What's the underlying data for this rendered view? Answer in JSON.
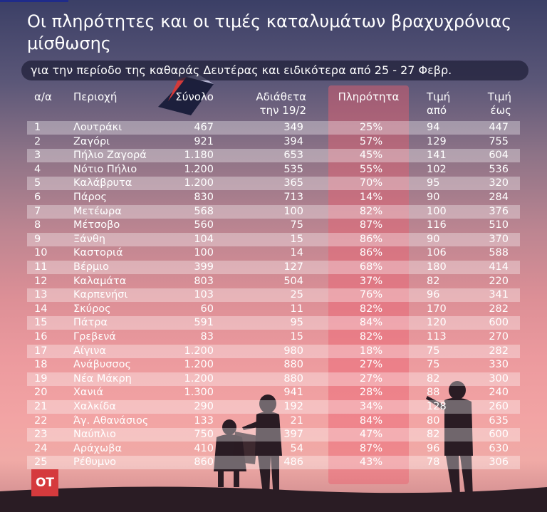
{
  "title": "Οι πληρότητες και οι τιμές καταλυμάτων βραχυχρόνιας μίσθωσης",
  "subtitle": "για την περίοδο της καθαράς Δευτέρας και ειδικότερα από 25 - 27 Φεβρ.",
  "logo": "ΟΤ",
  "colors": {
    "highlight": "#eb5f6e",
    "subtitle_bar": "#1e1e37",
    "logo": "#d53a3d",
    "text": "#ffffff"
  },
  "chart_data": {
    "type": "table",
    "columns": [
      {
        "key": "no",
        "label": [
          "α/α"
        ]
      },
      {
        "key": "region",
        "label": [
          "Περιοχή"
        ]
      },
      {
        "key": "total",
        "label": [
          "Σύνολο"
        ]
      },
      {
        "key": "unavailable",
        "label": [
          "Αδιάθετα",
          "την 19/2"
        ]
      },
      {
        "key": "occupancy",
        "label": [
          "Πληρότητα"
        ]
      },
      {
        "key": "price_from",
        "label": [
          "Τιμή",
          "από"
        ]
      },
      {
        "key": "price_to",
        "label": [
          "Τιμή",
          "έως"
        ]
      }
    ],
    "highlighted_column": "occupancy",
    "rows": [
      {
        "no": "1",
        "region": "Λουτράκι",
        "total": "467",
        "unavailable": "349",
        "occupancy": "25%",
        "price_from": "94",
        "price_to": "447"
      },
      {
        "no": "2",
        "region": "Ζαγόρι",
        "total": "921",
        "unavailable": "394",
        "occupancy": "57%",
        "price_from": "129",
        "price_to": "755"
      },
      {
        "no": "3",
        "region": "Πήλιο Ζαγορά",
        "total": "1.180",
        "unavailable": "653",
        "occupancy": "45%",
        "price_from": "141",
        "price_to": "604"
      },
      {
        "no": "4",
        "region": "Νότιο Πήλιο",
        "total": "1.200",
        "unavailable": "535",
        "occupancy": "55%",
        "price_from": "102",
        "price_to": "536"
      },
      {
        "no": "5",
        "region": "Καλάβρυτα",
        "total": "1.200",
        "unavailable": "365",
        "occupancy": "70%",
        "price_from": "95",
        "price_to": "320"
      },
      {
        "no": "6",
        "region": "Πάρος",
        "total": "830",
        "unavailable": "713",
        "occupancy": "14%",
        "price_from": "90",
        "price_to": "284"
      },
      {
        "no": "7",
        "region": "Μετέωρα",
        "total": "568",
        "unavailable": "100",
        "occupancy": "82%",
        "price_from": "100",
        "price_to": "376"
      },
      {
        "no": "8",
        "region": "Μέτσοβο",
        "total": "560",
        "unavailable": "75",
        "occupancy": "87%",
        "price_from": "116",
        "price_to": "510"
      },
      {
        "no": "9",
        "region": "Ξάνθη",
        "total": "104",
        "unavailable": "15",
        "occupancy": "86%",
        "price_from": "90",
        "price_to": "370"
      },
      {
        "no": "10",
        "region": "Καστοριά",
        "total": "100",
        "unavailable": "14",
        "occupancy": "86%",
        "price_from": "106",
        "price_to": "588"
      },
      {
        "no": "11",
        "region": "Βέρμιο",
        "total": "399",
        "unavailable": "127",
        "occupancy": "68%",
        "price_from": "180",
        "price_to": "414"
      },
      {
        "no": "12",
        "region": "Καλαμάτα",
        "total": "803",
        "unavailable": "504",
        "occupancy": "37%",
        "price_from": "82",
        "price_to": "220"
      },
      {
        "no": "13",
        "region": "Καρπενήσι",
        "total": "103",
        "unavailable": "25",
        "occupancy": "76%",
        "price_from": "96",
        "price_to": "341"
      },
      {
        "no": "14",
        "region": "Σκύρος",
        "total": "60",
        "unavailable": "11",
        "occupancy": "82%",
        "price_from": "170",
        "price_to": "282"
      },
      {
        "no": "15",
        "region": "Πάτρα",
        "total": "591",
        "unavailable": "95",
        "occupancy": "84%",
        "price_from": "120",
        "price_to": "600"
      },
      {
        "no": "16",
        "region": "Γρεβενά",
        "total": "83",
        "unavailable": "15",
        "occupancy": "82%",
        "price_from": "113",
        "price_to": "270"
      },
      {
        "no": "17",
        "region": "Αίγινα",
        "total": "1.200",
        "unavailable": "980",
        "occupancy": "18%",
        "price_from": "75",
        "price_to": "282"
      },
      {
        "no": "18",
        "region": "Ανάβυσσος",
        "total": "1.200",
        "unavailable": "880",
        "occupancy": "27%",
        "price_from": "75",
        "price_to": "330"
      },
      {
        "no": "19",
        "region": "Νέα Μάκρη",
        "total": "1.200",
        "unavailable": "880",
        "occupancy": "27%",
        "price_from": "82",
        "price_to": "300"
      },
      {
        "no": "20",
        "region": "Χανιά",
        "total": "1.300",
        "unavailable": "941",
        "occupancy": "28%",
        "price_from": "88",
        "price_to": "240"
      },
      {
        "no": "21",
        "region": "Χαλκίδα",
        "total": "290",
        "unavailable": "192",
        "occupancy": "34%",
        "price_from": "128",
        "price_to": "260"
      },
      {
        "no": "22",
        "region": "Άγ. Αθανάσιος",
        "total": "133",
        "unavailable": "21",
        "occupancy": "84%",
        "price_from": "80",
        "price_to": "635"
      },
      {
        "no": "23",
        "region": "Ναύπλιο",
        "total": "750",
        "unavailable": "397",
        "occupancy": "47%",
        "price_from": "82",
        "price_to": "600"
      },
      {
        "no": "24",
        "region": "Αράχωβα",
        "total": "410",
        "unavailable": "54",
        "occupancy": "87%",
        "price_from": "96",
        "price_to": "630"
      },
      {
        "no": "25",
        "region": "Ρέθυμνο",
        "total": "860",
        "unavailable": "486",
        "occupancy": "43%",
        "price_from": "78",
        "price_to": "306"
      }
    ]
  }
}
